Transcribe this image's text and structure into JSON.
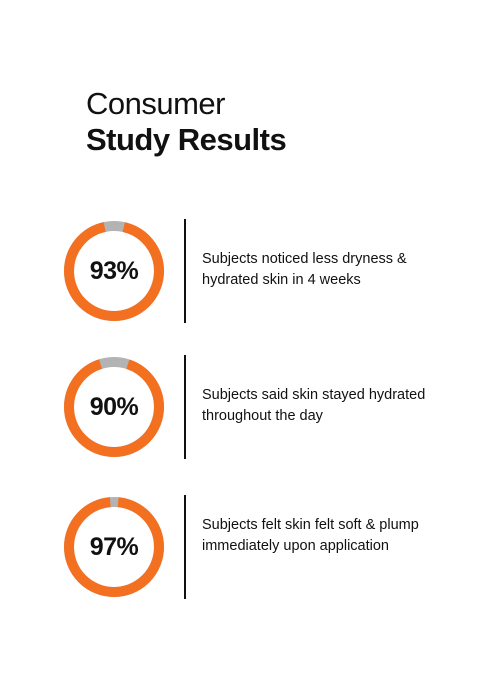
{
  "heading": {
    "line1": "Consumer",
    "line2": "Study Results"
  },
  "colors": {
    "accent": "#f37021",
    "track": "#b3b3b3",
    "text": "#111111"
  },
  "stats": [
    {
      "value": "93%",
      "percent": 93,
      "text": "Subjects noticed less dryness & hydrated skin in 4 weeks"
    },
    {
      "value": "90%",
      "percent": 90,
      "text": "Subjects said skin stayed hydrated throughout the day"
    },
    {
      "value": "97%",
      "percent": 97,
      "text": "Subjects felt skin felt soft & plump immediately upon application"
    }
  ]
}
